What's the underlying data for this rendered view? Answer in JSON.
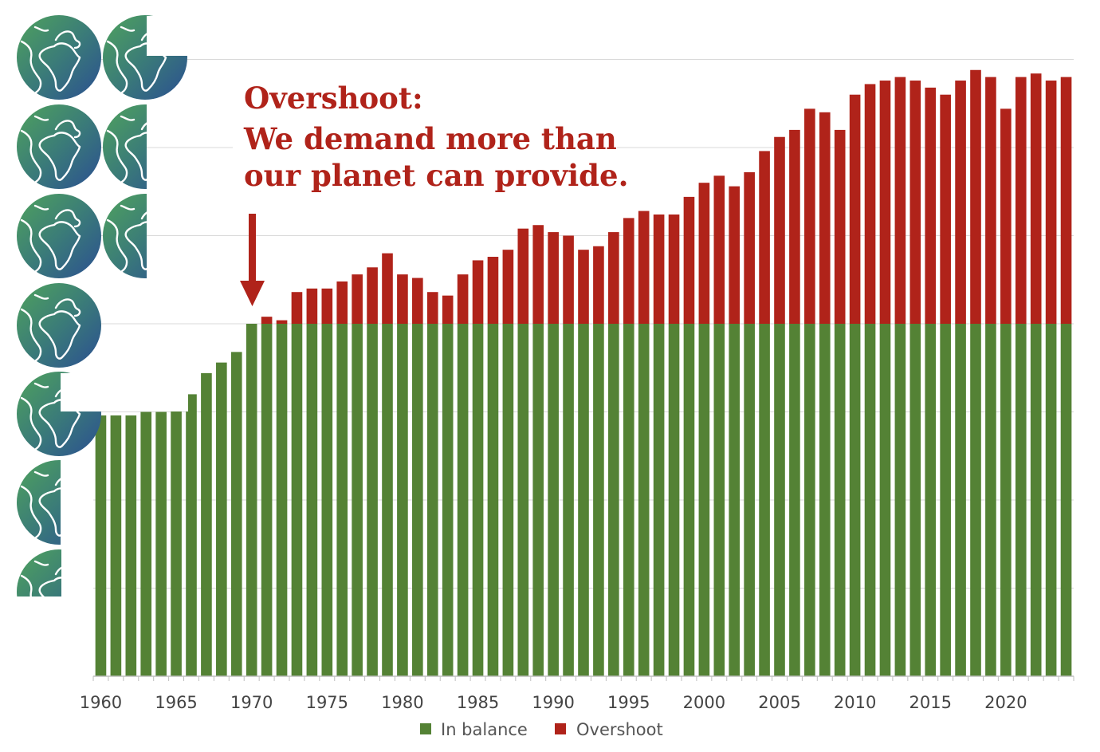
{
  "chart_data": {
    "type": "bar",
    "stacked": true,
    "x": [
      1960,
      1961,
      1962,
      1963,
      1964,
      1965,
      1966,
      1967,
      1968,
      1969,
      1970,
      1971,
      1972,
      1973,
      1974,
      1975,
      1976,
      1977,
      1978,
      1979,
      1980,
      1981,
      1982,
      1983,
      1984,
      1985,
      1986,
      1987,
      1988,
      1989,
      1990,
      1991,
      1992,
      1993,
      1994,
      1995,
      1996,
      1997,
      1998,
      1999,
      2000,
      2001,
      2002,
      2003,
      2004,
      2005,
      2006,
      2007,
      2008,
      2009,
      2010,
      2011,
      2012,
      2013,
      2014,
      2015,
      2016,
      2017,
      2018,
      2019,
      2020,
      2021,
      2022,
      2023,
      2024
    ],
    "x_tick_labels": [
      "1960",
      "1965",
      "1970",
      "1975",
      "1980",
      "1985",
      "1990",
      "1995",
      "2000",
      "2005",
      "2010",
      "2015",
      "2020"
    ],
    "ylim": [
      0,
      1.75
    ],
    "grid": true,
    "legend_position": "bottom",
    "series": [
      {
        "name": "In balance",
        "color": "#548235",
        "values": [
          0.74,
          0.74,
          0.74,
          0.75,
          0.75,
          0.76,
          0.8,
          0.86,
          0.89,
          0.92,
          1.0,
          1.0,
          1.0,
          1.0,
          1.0,
          1.0,
          1.0,
          1.0,
          1.0,
          1.0,
          1.0,
          1.0,
          1.0,
          1.0,
          1.0,
          1.0,
          1.0,
          1.0,
          1.0,
          1.0,
          1.0,
          1.0,
          1.0,
          1.0,
          1.0,
          1.0,
          1.0,
          1.0,
          1.0,
          1.0,
          1.0,
          1.0,
          1.0,
          1.0,
          1.0,
          1.0,
          1.0,
          1.0,
          1.0,
          1.0,
          1.0,
          1.0,
          1.0,
          1.0,
          1.0,
          1.0,
          1.0,
          1.0,
          1.0,
          1.0,
          1.0,
          1.0,
          1.0,
          1.0,
          1.0
        ]
      },
      {
        "name": "Overshoot",
        "color": "#b0231a",
        "values": [
          0,
          0,
          0,
          0,
          0,
          0,
          0,
          0,
          0,
          0,
          0.0,
          0.02,
          0.01,
          0.09,
          0.1,
          0.1,
          0.12,
          0.14,
          0.16,
          0.2,
          0.14,
          0.13,
          0.09,
          0.08,
          0.14,
          0.18,
          0.19,
          0.21,
          0.27,
          0.28,
          0.26,
          0.25,
          0.21,
          0.22,
          0.26,
          0.3,
          0.32,
          0.31,
          0.31,
          0.36,
          0.4,
          0.42,
          0.39,
          0.43,
          0.49,
          0.53,
          0.55,
          0.61,
          0.6,
          0.55,
          0.65,
          0.68,
          0.69,
          0.7,
          0.69,
          0.67,
          0.65,
          0.69,
          0.72,
          0.7,
          0.61,
          0.7,
          0.71,
          0.69,
          0.7
        ]
      }
    ]
  },
  "annotation": {
    "lines": [
      "Overshoot:",
      "We demand more than",
      "our planet can provide."
    ]
  },
  "legend": {
    "in_balance_label": "In balance",
    "overshoot_label": "Overshoot"
  },
  "decor": {
    "icon": "earth-globe-icon",
    "colors": {
      "globe_green": "#4c9a5c",
      "globe_blue": "#2e5a93",
      "grid": "#d9d9d9"
    }
  }
}
